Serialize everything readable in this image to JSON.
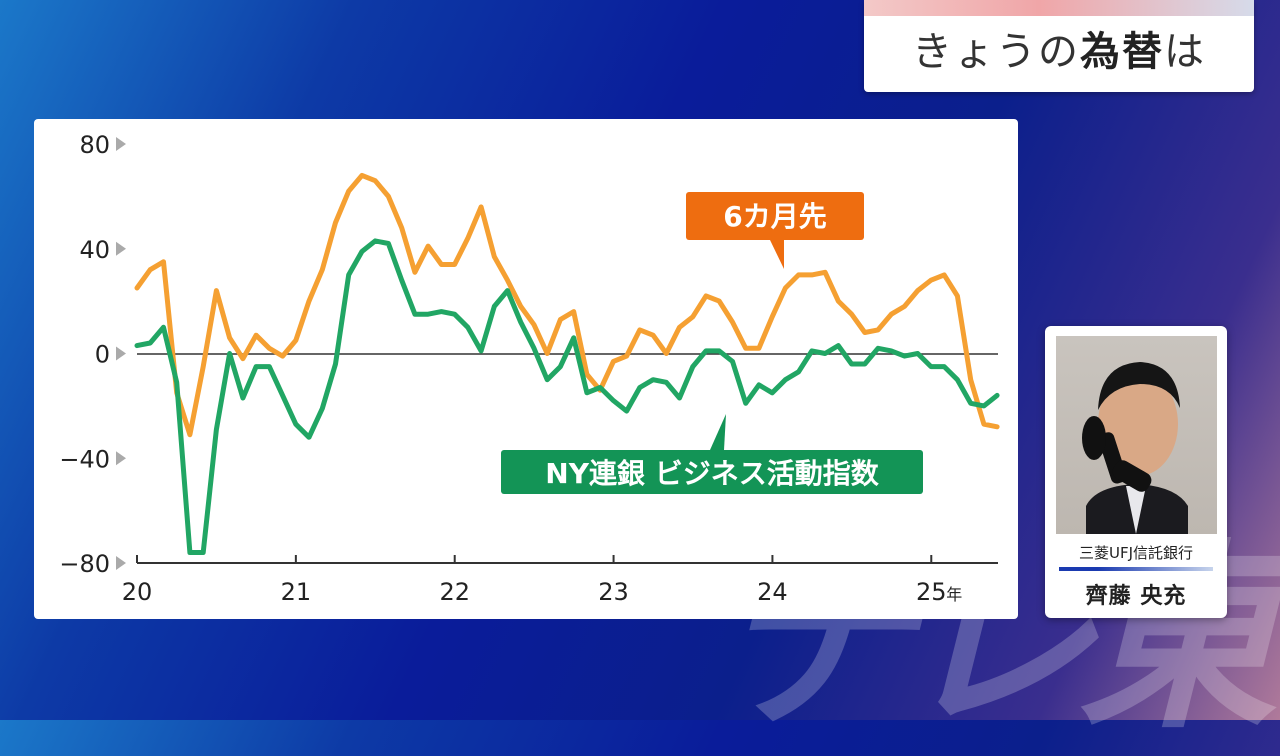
{
  "program": {
    "title_plain": "きょうの",
    "title_bold": "為替",
    "title_tail": "は",
    "watermark": "テレ東"
  },
  "person": {
    "org": "三菱UFJ信託銀行",
    "name": "齊藤 央充"
  },
  "colors": {
    "six_month": "#f5a032",
    "ny_index": "#21a664",
    "six_month_label_bg": "#ee6d10",
    "ny_label_bg": "#139456"
  },
  "chart_data": {
    "type": "line",
    "ylim": [
      -80,
      80
    ],
    "yticks": [
      "80",
      "40",
      "0",
      "−40",
      "−80"
    ],
    "ytick_values": [
      80,
      40,
      0,
      -40,
      -80
    ],
    "xticks": [
      "20",
      "21",
      "22",
      "23",
      "24",
      "25"
    ],
    "xtick_suffix": "年",
    "xlim": [
      2020.0,
      2025.42
    ],
    "x_start": 2020.0,
    "x_step": 0.0833,
    "series": [
      {
        "name": "6カ月先",
        "values": [
          25,
          32,
          35,
          -15,
          -31,
          -5,
          24,
          6,
          -2,
          7,
          2,
          -1,
          5,
          20,
          32,
          50,
          62,
          68,
          66,
          60,
          48,
          31,
          41,
          34,
          34,
          44,
          56,
          37,
          28,
          18,
          11,
          0,
          13,
          16,
          -8,
          -14,
          -3,
          -1,
          9,
          7,
          0,
          10,
          14,
          22,
          20,
          12,
          2,
          2,
          14,
          25,
          30,
          30,
          31,
          20,
          15,
          8,
          9,
          15,
          18,
          24,
          28,
          30,
          22,
          -10,
          -27,
          -28
        ]
      },
      {
        "name": "NY連銀 ビジネス活動指数",
        "values": [
          3,
          4,
          10,
          -11,
          -76,
          -76,
          -29,
          0,
          -17,
          -5,
          -5,
          -16,
          -27,
          -32,
          -21,
          -4,
          30,
          39,
          43,
          42,
          28,
          15,
          15,
          16,
          15,
          10,
          1,
          18,
          24,
          12,
          2,
          -10,
          -5,
          6,
          -15,
          -13,
          -18,
          -22,
          -13,
          -10,
          -11,
          -17,
          -5,
          1,
          1,
          -3,
          -19,
          -12,
          -15,
          -10,
          -7,
          1,
          0,
          3,
          -4,
          -4,
          2,
          1,
          -1,
          0,
          -5,
          -5,
          -10,
          -19,
          -20,
          -16
        ]
      }
    ]
  }
}
